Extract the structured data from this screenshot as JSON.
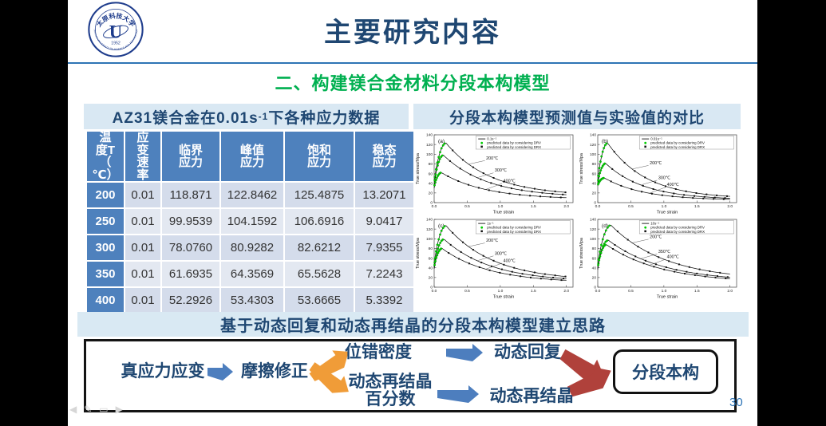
{
  "header": {
    "title": "主要研究内容",
    "subtitle": "二、构建镁合金材料分段本构模型",
    "logo": {
      "cn_name": "太原科技大学",
      "letter": "U",
      "year": "1952",
      "en_name": "TAIYUAN UNIVERSITY OF SCIENCE AND TECHNOLOGY"
    }
  },
  "left_panel": {
    "title_prefix": "AZ31镁合金在0.01s",
    "title_sup": "-1",
    "title_suffix": "下各种应力数据",
    "table": {
      "headers": [
        "温\n度T\n（\n℃）",
        "应\n变\n速\n率",
        "临界\n应力",
        "峰值\n应力",
        "饱和\n应力",
        "稳态\n应力"
      ],
      "rows": [
        [
          "200",
          "0.01",
          "118.871",
          "122.8462",
          "125.4875",
          "13.2071"
        ],
        [
          "250",
          "0.01",
          "99.9539",
          "104.1592",
          "106.6916",
          "9.0417"
        ],
        [
          "300",
          "0.01",
          "78.0760",
          "80.9282",
          "82.6212",
          "7.9355"
        ],
        [
          "350",
          "0.01",
          "61.6935",
          "64.3569",
          "65.5628",
          "7.2243"
        ],
        [
          "400",
          "0.01",
          "52.2926",
          "53.4303",
          "53.6665",
          "5.3392"
        ]
      ]
    }
  },
  "right_panel": {
    "title": "分段本构模型预测值与实验值的对比"
  },
  "chart_data": [
    {
      "type": "line",
      "panel": "(a)",
      "rate_label": "0.1s⁻¹",
      "xlabel": "True strain",
      "ylabel": "True stress/Mpa",
      "xlim": [
        0,
        2.0
      ],
      "ylim": [
        0,
        140
      ],
      "xticks": [
        "0.0",
        "0.5",
        "1.0",
        "1.5",
        "2.0"
      ],
      "yticks": [
        0,
        20,
        40,
        60,
        80,
        100,
        120,
        140
      ],
      "legend": [
        "predicted data by considering DRV",
        "predicted data by considering DRX"
      ],
      "legend_position": "top-right",
      "grid": false,
      "decay": 1.5,
      "series": [
        {
          "label": "200℃",
          "start": 36,
          "peak": 123,
          "peak_strain": 0.18,
          "end": 14
        },
        {
          "label": "300℃",
          "start": 34,
          "peak": 98,
          "peak_strain": 0.14,
          "end": 11
        },
        {
          "label": "400℃",
          "start": 30,
          "peak": 62,
          "peak_strain": 0.11,
          "end": 7
        }
      ]
    },
    {
      "type": "line",
      "panel": "(b)",
      "rate_label": "0.01s⁻¹",
      "xlabel": "True strain",
      "ylabel": "True stress/Mpa",
      "xlim": [
        0,
        2.0
      ],
      "ylim": [
        0,
        140
      ],
      "xticks": [
        "0.0",
        "0.5",
        "1.0",
        "1.5",
        "2.0"
      ],
      "yticks": [
        0,
        20,
        40,
        60,
        80,
        100,
        120,
        140
      ],
      "legend": [
        "predicted data by considering DRV",
        "predicted data by considering DRX"
      ],
      "legend_position": "top-right",
      "grid": false,
      "decay": 1.7,
      "series": [
        {
          "label": "200℃",
          "start": 40,
          "peak": 123,
          "peak_strain": 0.15,
          "end": 8
        },
        {
          "label": "300℃",
          "start": 38,
          "peak": 81,
          "peak_strain": 0.12,
          "end": 6
        },
        {
          "label": "400℃",
          "start": 35,
          "peak": 51,
          "peak_strain": 0.1,
          "end": 5
        }
      ]
    },
    {
      "type": "line",
      "panel": "(c)",
      "rate_label": "1s⁻¹",
      "xlabel": "True strain",
      "ylabel": "True stress/Mpa",
      "xlim": [
        0,
        2.0
      ],
      "ylim": [
        0,
        140
      ],
      "xticks": [
        "0.0",
        "0.5",
        "1.0",
        "1.5",
        "2.0"
      ],
      "yticks": [
        0,
        20,
        40,
        60,
        80,
        100,
        120,
        140
      ],
      "legend": [
        "predicted data by considering DRV",
        "predicted data by considering DRX"
      ],
      "legend_position": "top-right",
      "grid": false,
      "decay": 1.4,
      "series": [
        {
          "label": "200℃",
          "start": 42,
          "peak": 127,
          "peak_strain": 0.18,
          "end": 13
        },
        {
          "label": "300℃",
          "start": 40,
          "peak": 99,
          "peak_strain": 0.15,
          "end": 11
        },
        {
          "label": "400℃",
          "start": 38,
          "peak": 80,
          "peak_strain": 0.12,
          "end": 9
        }
      ]
    },
    {
      "type": "line",
      "panel": "(d)",
      "rate_label": "10s⁻¹",
      "xlabel": "True strain",
      "ylabel": "True stress/Mpa",
      "xlim": [
        0,
        2.0
      ],
      "ylim": [
        0,
        140
      ],
      "xticks": [
        "0.0",
        "0.5",
        "1.0",
        "1.5",
        "2.0"
      ],
      "yticks": [
        0,
        20,
        40,
        60,
        80,
        100,
        120,
        140
      ],
      "legend": [
        "predicted data by considering DRV",
        "predicted data by considering DRX"
      ],
      "legend_position": "top-right",
      "grid": false,
      "decay": 1.2,
      "series": [
        {
          "label": "200℃",
          "start": 40,
          "peak": 128,
          "peak_strain": 0.2,
          "end": 14
        },
        {
          "label": "350℃",
          "start": 38,
          "peak": 97,
          "peak_strain": 0.16,
          "end": 11
        },
        {
          "label": "400℃",
          "start": 36,
          "peak": 88,
          "peak_strain": 0.13,
          "end": 9
        }
      ]
    }
  ],
  "banner": {
    "text": "基于动态回复和动态再结晶的分段本构模型建立思路"
  },
  "diagram": {
    "node_true_stress": "真应力应变",
    "node_friction": "摩擦修正",
    "node_dislocation": "位错密度",
    "node_drv": "动态回复",
    "node_drx_fraction": "动态再结晶\n百分数",
    "node_drx": "动态再结晶",
    "node_segmented": "分段本构"
  },
  "nav": {
    "glyphs": [
      "◀",
      "✎",
      "▭",
      "▶"
    ]
  },
  "page_number": "30",
  "colors": {
    "accent_navy": "#1F4772",
    "subtitle_green": "#00B050",
    "table_header_blue": "#4E81BD",
    "band_bg": "#D9E8F3",
    "divider_blue": "#2E74B5",
    "page_number_blue": "#2E74B6",
    "drv_green": "#00CE00",
    "curve_black": "#111111",
    "arrow_blue": "#4D7EBE",
    "arrow_orange": "#F09C38",
    "arrow_red": "#B0413B"
  }
}
